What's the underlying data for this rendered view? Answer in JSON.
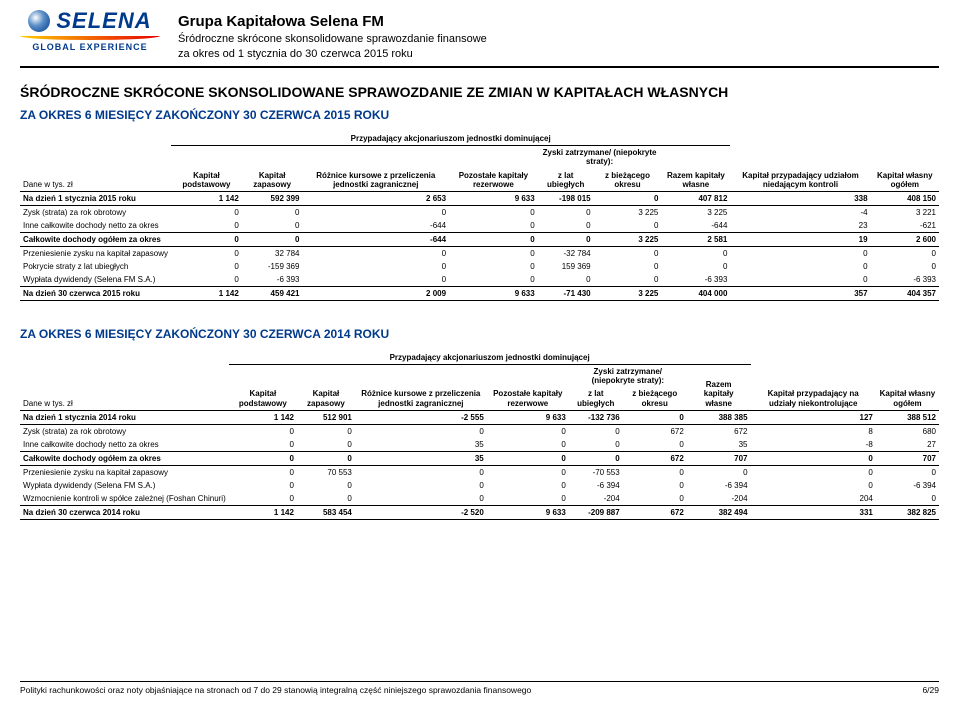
{
  "logo": {
    "name": "SELENA",
    "sub": "GLOBAL EXPERIENCE"
  },
  "header": {
    "title": "Grupa Kapitałowa Selena FM",
    "line2": "Śródroczne skrócone skonsolidowane sprawozdanie finansowe",
    "line3": "za okres od 1 stycznia do 30 czerwca 2015 roku"
  },
  "main_title": "ŚRÓDROCZNE SKRÓCONE SKONSOLIDOWANE SPRAWOZDANIE ZE ZMIAN W KAPITAŁACH WŁASNYCH",
  "period1_title": "ZA OKRES 6 MIESIĘCY ZAKOŃCZONY 30 CZERWCA 2015 ROKU",
  "period2_title": "ZA OKRES 6 MIESIĘCY ZAKOŃCZONY 30 CZERWCA 2014 ROKU",
  "unit_label": "Dane w tys. zł",
  "group_header": "Przypadający akcjonariuszom jednostki dominującej",
  "sub_group_header": "Zyski zatrzymane/ (niepokryte straty):",
  "columns": {
    "c1": "Kapitał podstawowy",
    "c2": "Kapitał zapasowy",
    "c3": "Różnice kursowe z przeliczenia jednostki zagranicznej",
    "c4": "Pozostałe kapitały rezerwowe",
    "c5": "z lat ubiegłych",
    "c6": "z bieżącego okresu",
    "c7": "Razem kapitały własne",
    "c8a": "Kapitał przypadający udziałom niedającym kontroli",
    "c8b": "Kapitał przypadający na udziały niekontrolujące",
    "c9": "Kapitał własny ogółem"
  },
  "table1": {
    "rows": [
      {
        "label": "Na dzień 1 stycznia 2015 roku",
        "v": [
          "1 142",
          "592 399",
          "2 653",
          "9 633",
          "-198 015",
          "0",
          "407 812",
          "338",
          "408 150"
        ],
        "bold": true,
        "bt": true,
        "bb": true
      },
      {
        "label": "Zysk (strata) za rok obrotowy",
        "v": [
          "0",
          "0",
          "0",
          "0",
          "0",
          "3 225",
          "3 225",
          "-4",
          "3 221"
        ]
      },
      {
        "label": "Inne całkowite dochody netto za okres",
        "v": [
          "0",
          "0",
          "-644",
          "0",
          "0",
          "0",
          "-644",
          "23",
          "-621"
        ],
        "bb": true
      },
      {
        "label": "Całkowite dochody ogółem za okres",
        "v": [
          "0",
          "0",
          "-644",
          "0",
          "0",
          "3 225",
          "2 581",
          "19",
          "2 600"
        ],
        "bold": true,
        "bb": true
      },
      {
        "label": "Przeniesienie zysku na kapitał zapasowy",
        "v": [
          "0",
          "32 784",
          "0",
          "0",
          "-32 784",
          "0",
          "0",
          "0",
          "0"
        ]
      },
      {
        "label": "Pokrycie straty z lat ubiegłych",
        "v": [
          "0",
          "-159 369",
          "0",
          "0",
          "159 369",
          "0",
          "0",
          "0",
          "0"
        ]
      },
      {
        "label": "Wypłata dywidendy  (Selena FM S.A.)",
        "v": [
          "0",
          "-6 393",
          "0",
          "0",
          "0",
          "0",
          "-6 393",
          "0",
          "-6 393"
        ],
        "bb": true
      },
      {
        "label": "Na dzień 30 czerwca 2015 roku",
        "v": [
          "1 142",
          "459 421",
          "2 009",
          "9 633",
          "-71 430",
          "3 225",
          "404 000",
          "357",
          "404 357"
        ],
        "bold": true,
        "bb": true
      }
    ]
  },
  "table2": {
    "rows": [
      {
        "label": "Na dzień 1 stycznia 2014 roku",
        "v": [
          "1 142",
          "512 901",
          "-2 555",
          "9 633",
          "-132 736",
          "0",
          "388 385",
          "127",
          "388 512"
        ],
        "bold": true,
        "bt": true,
        "bb": true
      },
      {
        "label": "Zysk (strata) za rok obrotowy",
        "v": [
          "0",
          "0",
          "0",
          "0",
          "0",
          "672",
          "672",
          "8",
          "680"
        ]
      },
      {
        "label": "Inne całkowite dochody netto za okres",
        "v": [
          "0",
          "0",
          "35",
          "0",
          "0",
          "0",
          "35",
          "-8",
          "27"
        ],
        "bb": true
      },
      {
        "label": "Całkowite dochody ogółem za okres",
        "v": [
          "0",
          "0",
          "35",
          "0",
          "0",
          "672",
          "707",
          "0",
          "707"
        ],
        "bold": true,
        "bb": true
      },
      {
        "label": "Przeniesienie zysku na kapitał zapasowy",
        "v": [
          "0",
          "70 553",
          "0",
          "0",
          "-70 553",
          "0",
          "0",
          "0",
          "0"
        ]
      },
      {
        "label": "Wypłata dywidendy  (Selena FM S.A.)",
        "v": [
          "0",
          "0",
          "0",
          "0",
          "-6 394",
          "0",
          "-6 394",
          "0",
          "-6 394"
        ]
      },
      {
        "label": "Wzmocnienie kontroli w spółce zależnej (Foshan Chinuri)",
        "v": [
          "0",
          "0",
          "0",
          "0",
          "-204",
          "0",
          "-204",
          "204",
          "0"
        ],
        "bb": true
      },
      {
        "label": "Na dzień 30 czerwca 2014 roku",
        "v": [
          "1 142",
          "583 454",
          "-2 520",
          "9 633",
          "-209 887",
          "672",
          "382 494",
          "331",
          "382 825"
        ],
        "bold": true,
        "bb": true
      }
    ]
  },
  "footer": {
    "text": "Polityki rachunkowości oraz noty objaśniające na stronach od 7 do 29 stanowią integralną część niniejszego sprawozdania finansowego",
    "page": "6/29"
  },
  "colors": {
    "brand": "#003a8c",
    "rule": "#000000"
  }
}
